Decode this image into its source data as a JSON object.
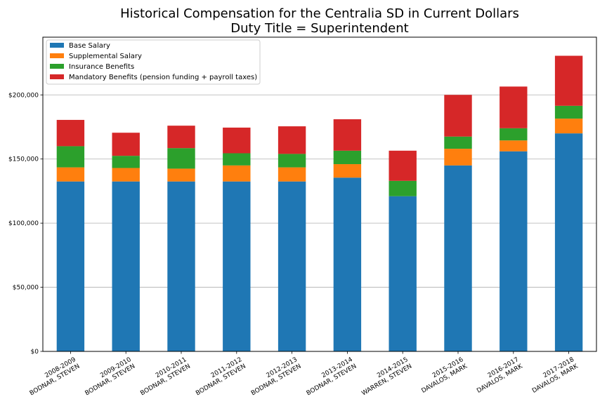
{
  "chart_data": {
    "type": "bar",
    "stacked": true,
    "title": "Historical Compensation for the Centralia SD in Current Dollars",
    "subtitle": "Duty Title = Superintendent",
    "xlabel": "",
    "ylabel": "",
    "ylim": [
      0,
      245000
    ],
    "yticks": [
      0,
      50000,
      100000,
      150000,
      200000
    ],
    "ytick_labels": [
      "$0",
      "$50,000",
      "$100,000",
      "$150,000",
      "$200,000"
    ],
    "grid": "horizontal",
    "legend_position": "top-left",
    "categories": [
      {
        "year": "2008-2009",
        "name": "BODNAR, STEVEN"
      },
      {
        "year": "2009-2010",
        "name": "BODNAR, STEVEN"
      },
      {
        "year": "2010-2011",
        "name": "BODNAR, STEVEN"
      },
      {
        "year": "2011-2012",
        "name": "BODNAR, STEVEN"
      },
      {
        "year": "2012-2013",
        "name": "BODNAR, STEVEN"
      },
      {
        "year": "2013-2014",
        "name": "BODNAR, STEVEN"
      },
      {
        "year": "2014-2015",
        "name": "WARREN, STEVEN"
      },
      {
        "year": "2015-2016",
        "name": "DAVALOS, MARK"
      },
      {
        "year": "2016-2017",
        "name": "DAVALOS, MARK"
      },
      {
        "year": "2017-2018",
        "name": "DAVALOS, MARK"
      }
    ],
    "series": [
      {
        "name": "Base Salary",
        "color": "#1f77b4",
        "values": [
          132500,
          132500,
          132500,
          132500,
          132500,
          135500,
          121000,
          145000,
          156000,
          170000
        ]
      },
      {
        "name": "Supplemental Salary",
        "color": "#ff7f0e",
        "values": [
          11000,
          10500,
          10000,
          12500,
          11000,
          10500,
          0,
          13000,
          8500,
          11500
        ]
      },
      {
        "name": "Insurance Benefits",
        "color": "#2ca02c",
        "values": [
          16500,
          9500,
          16000,
          9500,
          10500,
          10500,
          12000,
          9500,
          9500,
          10000
        ]
      },
      {
        "name": "Mandatory Benefits (pension funding + payroll taxes)",
        "color": "#d62728",
        "values": [
          20500,
          18000,
          17500,
          20000,
          21500,
          24500,
          23500,
          32500,
          32500,
          39000
        ]
      }
    ]
  }
}
